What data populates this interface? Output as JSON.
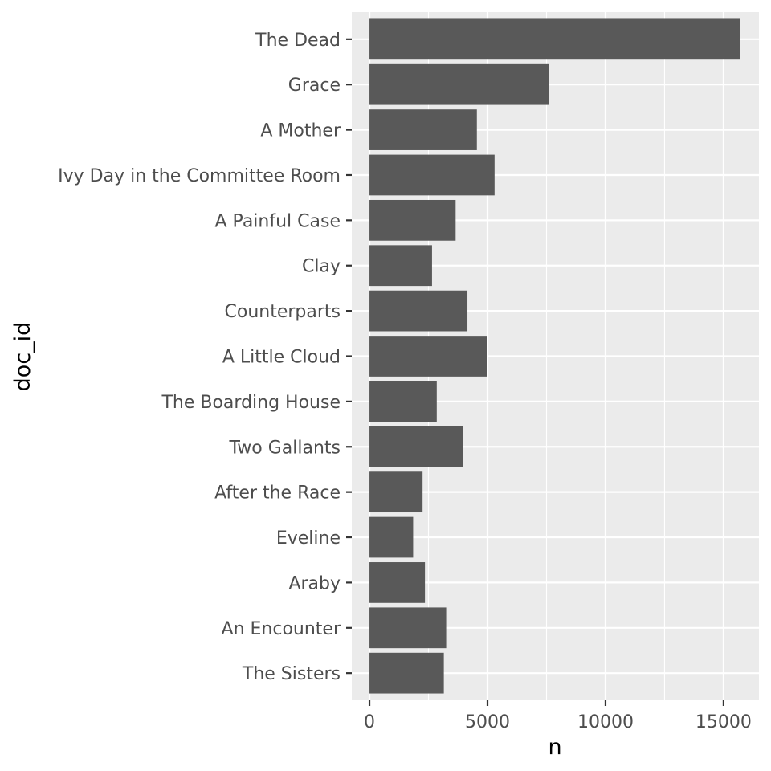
{
  "chart_data": {
    "type": "bar",
    "orientation": "horizontal",
    "xlabel": "n",
    "ylabel": "doc_id",
    "xlim": [
      -750,
      16500
    ],
    "x_ticks": [
      0,
      5000,
      10000,
      15000
    ],
    "x_tick_labels": [
      "0",
      "5000",
      "10000",
      "15000"
    ],
    "grid": true,
    "categories": [
      "The Dead",
      "Grace",
      "A Mother",
      "Ivy Day in the Committee Room",
      "A Painful Case",
      "Clay",
      "Counterparts",
      "A Little Cloud",
      "The Boarding House",
      "Two Gallants",
      "After the Race",
      "Eveline",
      "Araby",
      "An Encounter",
      "The Sisters"
    ],
    "values": [
      15700,
      7600,
      4550,
      5300,
      3650,
      2650,
      4150,
      5000,
      2850,
      3950,
      2250,
      1850,
      2350,
      3250,
      3150
    ],
    "colors": {
      "bar": "#595959",
      "panel": "#ebebeb",
      "grid": "#ffffff"
    }
  }
}
